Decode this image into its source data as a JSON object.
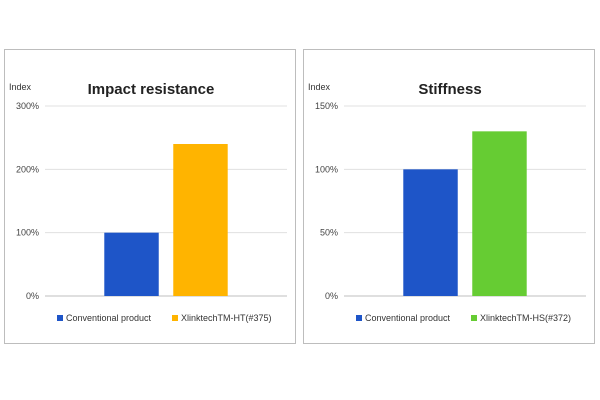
{
  "chart_data": [
    {
      "type": "bar",
      "title": "Impact resistance",
      "ylabel": "Index",
      "xlabel": "",
      "categories": [
        "Conventional product",
        "XlinktechTM-HT(#375)"
      ],
      "values": [
        100,
        240
      ],
      "colors": [
        "#1e55c8",
        "#ffb400"
      ],
      "ylim": [
        0,
        300
      ],
      "yticks": [
        "0%",
        "100%",
        "200%",
        "300%"
      ],
      "ytick_values": [
        0,
        100,
        200,
        300
      ],
      "grid": true,
      "legend": "bottom"
    },
    {
      "type": "bar",
      "title": "Stiffness",
      "ylabel": "Index",
      "xlabel": "",
      "categories": [
        "Conventional product",
        "XlinktechTM-HS(#372)"
      ],
      "values": [
        100,
        130
      ],
      "colors": [
        "#1e55c8",
        "#66cc33"
      ],
      "ylim": [
        0,
        150
      ],
      "yticks": [
        "0%",
        "50%",
        "100%",
        "150%"
      ],
      "ytick_values": [
        0,
        50,
        100,
        150
      ],
      "grid": true,
      "legend": "bottom"
    }
  ]
}
